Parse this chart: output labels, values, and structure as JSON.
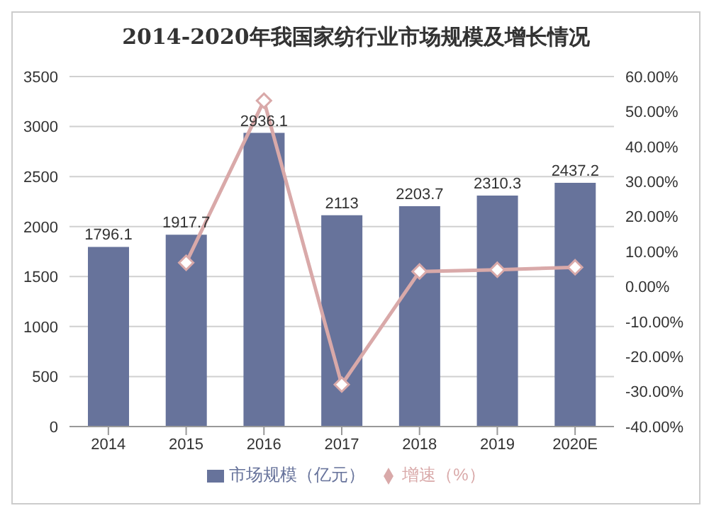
{
  "chart_data": {
    "type": "bar",
    "title": "2014-2020年我国家纺行业市场规模及增长情况",
    "categories": [
      "2014",
      "2015",
      "2016",
      "2017",
      "2018",
      "2019",
      "2020E"
    ],
    "series": [
      {
        "name": "市场规模（亿元）",
        "color": "#67739b",
        "values": [
          1796.1,
          1917.7,
          2936.1,
          2113,
          2203.7,
          2310.3,
          2437.2
        ],
        "value_labels": [
          "1796.1",
          "1917.7",
          "2936.1",
          "2113",
          "2203.7",
          "2310.3",
          "2437.2"
        ]
      },
      {
        "name": "增速（%）",
        "type": "line",
        "axis": "y2",
        "color": "#d9a9a9",
        "marker": "diamond",
        "values": [
          null,
          6.8,
          53.1,
          -28,
          4.3,
          4.8,
          5.5
        ]
      }
    ],
    "ylim": [
      0,
      3500
    ],
    "yticks": [
      0,
      500,
      1000,
      1500,
      2000,
      2500,
      3000,
      3500
    ],
    "y2lim": [
      -40,
      60
    ],
    "y2ticks": [
      {
        "value": -40,
        "label": "-40.00%"
      },
      {
        "value": -30,
        "label": "-30.00%"
      },
      {
        "value": -20,
        "label": "-20.00%"
      },
      {
        "value": -10,
        "label": "-10.00%"
      },
      {
        "value": 0,
        "label": "0.00%"
      },
      {
        "value": 10,
        "label": "10.00%"
      },
      {
        "value": 20,
        "label": "20.00%"
      },
      {
        "value": 30,
        "label": "30.00%"
      },
      {
        "value": 40,
        "label": "40.00%"
      },
      {
        "value": 50,
        "label": "50.00%"
      },
      {
        "value": 60,
        "label": "60.00%"
      }
    ],
    "grid": "y",
    "legend": "bottom"
  }
}
